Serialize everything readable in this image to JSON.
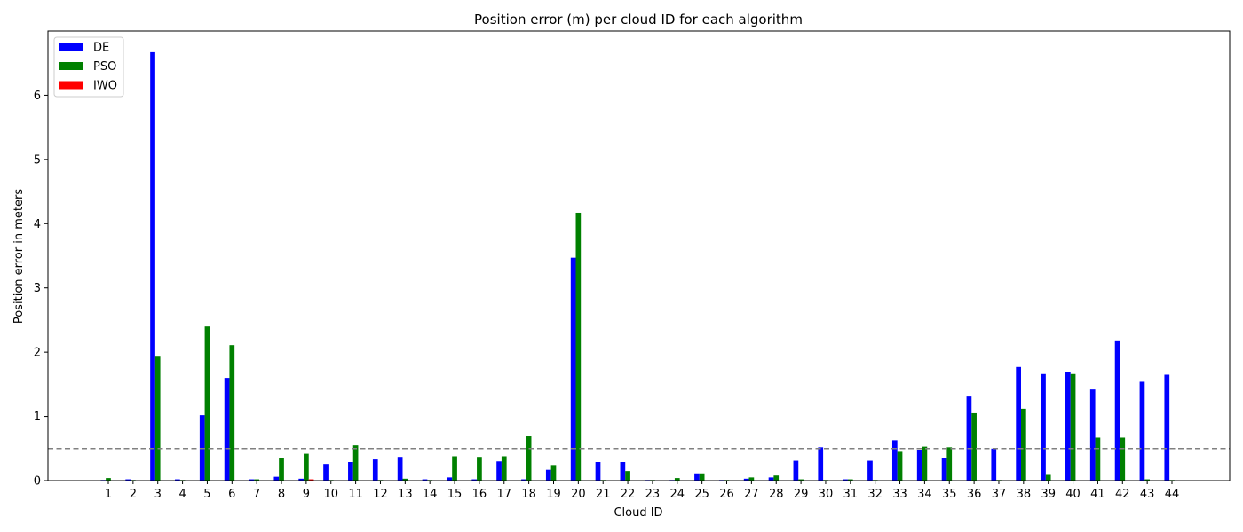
{
  "chart_data": {
    "type": "bar",
    "title": "Position error (m) per cloud ID for each algorithm",
    "xlabel": "Cloud ID",
    "ylabel": "Position error in meters",
    "categories": [
      "1",
      "2",
      "3",
      "4",
      "5",
      "6",
      "7",
      "8",
      "9",
      "10",
      "11",
      "12",
      "13",
      "14",
      "15",
      "16",
      "17",
      "18",
      "19",
      "20",
      "21",
      "22",
      "23",
      "24",
      "25",
      "26",
      "27",
      "28",
      "29",
      "30",
      "31",
      "32",
      "33",
      "34",
      "35",
      "36",
      "37",
      "38",
      "39",
      "40",
      "41",
      "42",
      "43",
      "44"
    ],
    "series": [
      {
        "name": "DE",
        "color": "#0000ff",
        "values": [
          0.01,
          0.02,
          6.67,
          0.02,
          1.02,
          1.6,
          0.02,
          0.06,
          0.03,
          0.26,
          0.29,
          0.33,
          0.37,
          0.02,
          0.05,
          0.02,
          0.3,
          0.02,
          0.17,
          3.47,
          0.29,
          0.29,
          0.01,
          0.01,
          0.1,
          0.01,
          0.03,
          0.05,
          0.31,
          0.52,
          0.02,
          0.31,
          0.63,
          0.47,
          0.35,
          1.31,
          0.5,
          1.77,
          1.66,
          1.69,
          1.42,
          2.17,
          1.54,
          1.65
        ]
      },
      {
        "name": "PSO",
        "color": "#008000",
        "values": [
          0.04,
          0.01,
          1.93,
          0.01,
          2.4,
          2.11,
          0.02,
          0.35,
          0.42,
          0.01,
          0.55,
          0.01,
          0.03,
          0.01,
          0.38,
          0.37,
          0.38,
          0.69,
          0.23,
          4.17,
          0.01,
          0.15,
          0.01,
          0.04,
          0.1,
          0.01,
          0.05,
          0.08,
          0.02,
          0.01,
          0.02,
          0.01,
          0.45,
          0.53,
          0.52,
          1.05,
          0.01,
          1.12,
          0.09,
          1.66,
          0.67,
          0.67,
          0.02,
          0.01
        ]
      },
      {
        "name": "IWO",
        "color": "#ff0000",
        "values": [
          0,
          0,
          0,
          0,
          0,
          0,
          0,
          0,
          0.02,
          0,
          0,
          0,
          0,
          0,
          0,
          0,
          0,
          0,
          0,
          0,
          0,
          0,
          0,
          0,
          0,
          0,
          0,
          0,
          0,
          0,
          0,
          0,
          0,
          0,
          0,
          0,
          0,
          0,
          0,
          0,
          0,
          0,
          0,
          0
        ]
      }
    ],
    "ylim": [
      0,
      7.0
    ],
    "yticks": [
      0,
      1,
      2,
      3,
      4,
      5,
      6
    ],
    "reference_line": {
      "value": 0.5,
      "style": "dashed",
      "color": "#808080"
    },
    "legend_placement": "top-left",
    "grid": false
  }
}
